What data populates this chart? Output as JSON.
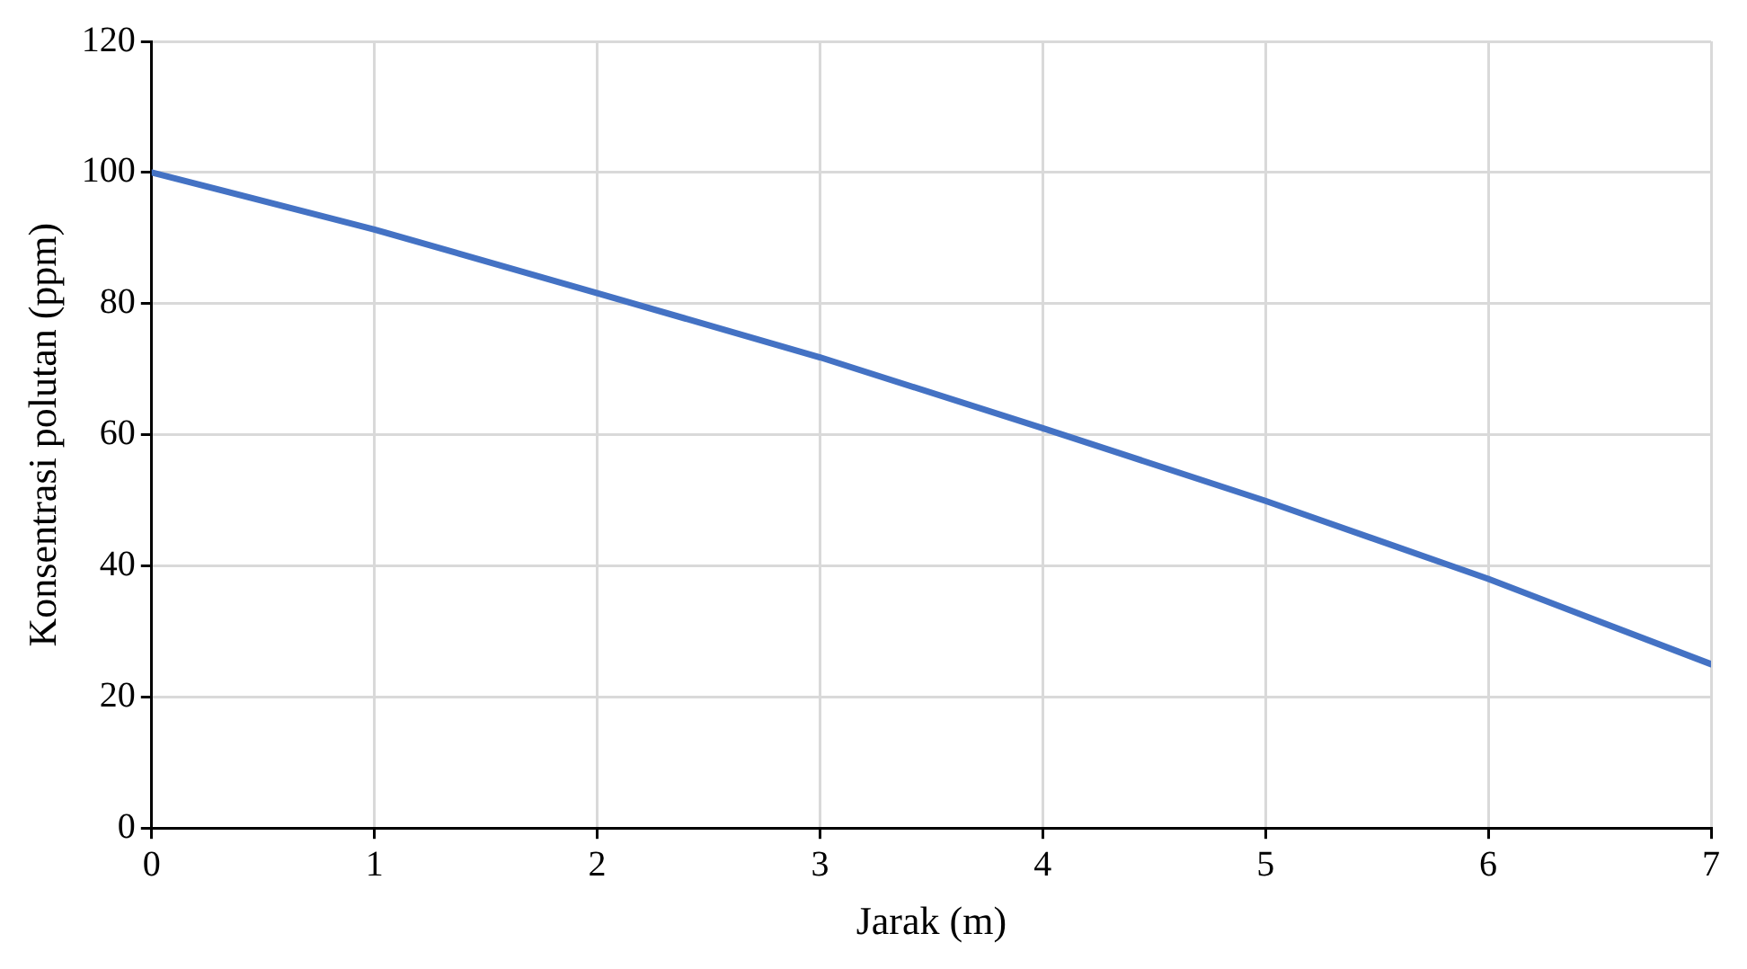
{
  "chart_data": {
    "type": "line",
    "xlabel": "Jarak (m)",
    "ylabel": "Konsentrasi polutan (ppm)",
    "x": [
      0,
      1,
      2,
      3,
      4,
      5,
      6,
      7
    ],
    "series": [
      {
        "color": "#4472c4",
        "values": [
          100,
          91.3,
          81.6,
          71.8,
          61,
          49.9,
          38,
          25
        ]
      }
    ],
    "xlim": [
      0,
      7
    ],
    "xticks": [
      0,
      1,
      2,
      3,
      4,
      5,
      6,
      7
    ],
    "ylim": [
      0,
      120
    ],
    "yticks": [
      0,
      20,
      40,
      60,
      80,
      100,
      120
    ],
    "grid": true,
    "legend": false,
    "marker": "none",
    "line_style": "solid"
  }
}
